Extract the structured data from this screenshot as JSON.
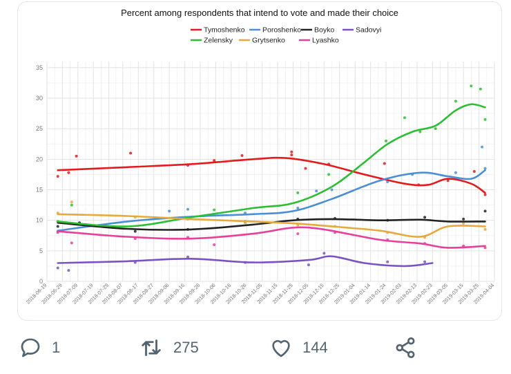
{
  "tweet": {
    "reply_count": "1",
    "retweet_count": "275",
    "like_count": "144"
  },
  "chart_data": {
    "type": "line",
    "title": "Percent among respondents that intend to vote and made their choice",
    "xlabel": "",
    "ylabel": "",
    "ylim": [
      0,
      36
    ],
    "xlim": [
      "2018-06-19",
      "2019-04-04"
    ],
    "grid": true,
    "legend_position": "top",
    "x_ticks": [
      "2018-06-19",
      "2018-06-29",
      "2018-07-09",
      "2018-07-19",
      "2018-07-29",
      "2018-08-07",
      "2018-08-17",
      "2018-08-27",
      "2018-09-06",
      "2018-09-16",
      "2018-09-26",
      "2018-10-06",
      "2018-10-16",
      "2018-10-26",
      "2018-11-05",
      "2018-11-15",
      "2018-11-25",
      "2018-12-05",
      "2018-12-15",
      "2018-12-25",
      "2019-01-04",
      "2019-01-14",
      "2019-01-24",
      "2019-02-03",
      "2019-02-13",
      "2019-02-23",
      "2019-03-05",
      "2019-03-15",
      "2019-03-25",
      "2019-04-04"
    ],
    "y_ticks": [
      0,
      5,
      10,
      15,
      20,
      25,
      30,
      35
    ],
    "series": [
      {
        "name": "Tymoshenko",
        "color": "#e41a1c",
        "x": [
          "2018-06-26",
          "2018-08-10",
          "2018-09-20",
          "2018-10-30",
          "2018-11-20",
          "2018-12-15",
          "2019-01-10",
          "2019-02-05",
          "2019-02-20",
          "2019-03-05",
          "2019-03-20",
          "2019-03-29"
        ],
        "y": [
          18.2,
          18.7,
          19.2,
          20.0,
          20.2,
          19.2,
          17.5,
          16.0,
          15.8,
          16.8,
          16.0,
          14.5
        ],
        "points": [
          [
            "2018-06-26",
            17.2
          ],
          [
            "2018-07-03",
            17.8
          ],
          [
            "2018-07-08",
            20.5
          ],
          [
            "2018-08-12",
            21.0
          ],
          [
            "2018-09-18",
            19.0
          ],
          [
            "2018-10-05",
            19.8
          ],
          [
            "2018-10-23",
            20.6
          ],
          [
            "2018-11-24",
            21.2
          ],
          [
            "2018-11-24",
            20.7
          ],
          [
            "2018-12-03",
            18.5
          ],
          [
            "2018-12-18",
            19.2
          ],
          [
            "2019-01-23",
            19.3
          ],
          [
            "2019-02-14",
            15.8
          ],
          [
            "2019-03-05",
            16.5
          ],
          [
            "2019-03-22",
            18.0
          ],
          [
            "2019-03-29",
            14.2
          ]
        ]
      },
      {
        "name": "Poroshenko",
        "color": "#4a8fd6",
        "x": [
          "2018-06-26",
          "2018-08-10",
          "2018-09-20",
          "2018-10-30",
          "2018-11-25",
          "2018-12-20",
          "2019-01-20",
          "2019-02-15",
          "2019-03-05",
          "2019-03-20",
          "2019-03-29"
        ],
        "y": [
          8.3,
          9.8,
          10.6,
          11.0,
          11.5,
          13.5,
          16.5,
          17.8,
          17.2,
          16.8,
          18.2
        ],
        "points": [
          [
            "2018-06-26",
            8.2
          ],
          [
            "2018-07-05",
            9.5
          ],
          [
            "2018-09-06",
            11.5
          ],
          [
            "2018-09-18",
            11.8
          ],
          [
            "2018-10-25",
            11.2
          ],
          [
            "2018-11-28",
            12.0
          ],
          [
            "2018-12-10",
            14.8
          ],
          [
            "2018-12-20",
            15.0
          ],
          [
            "2019-01-25",
            16.3
          ],
          [
            "2019-02-10",
            17.5
          ],
          [
            "2019-03-10",
            17.8
          ],
          [
            "2019-03-27",
            22.0
          ],
          [
            "2019-03-29",
            18.5
          ]
        ]
      },
      {
        "name": "Boyko",
        "color": "#222222",
        "x": [
          "2018-06-26",
          "2018-08-10",
          "2018-09-20",
          "2018-10-30",
          "2018-11-25",
          "2018-12-20",
          "2019-01-20",
          "2019-02-15",
          "2019-03-05",
          "2019-03-29"
        ],
        "y": [
          9.6,
          8.6,
          8.5,
          9.3,
          10.0,
          10.2,
          10.0,
          10.1,
          9.8,
          9.8
        ],
        "points": [
          [
            "2018-06-26",
            9.0
          ],
          [
            "2018-07-10",
            9.6
          ],
          [
            "2018-08-15",
            8.2
          ],
          [
            "2018-09-18",
            8.5
          ],
          [
            "2018-10-25",
            9.8
          ],
          [
            "2018-11-28",
            10.2
          ],
          [
            "2018-12-22",
            10.3
          ],
          [
            "2019-01-25",
            10.0
          ],
          [
            "2019-02-18",
            10.5
          ],
          [
            "2019-03-15",
            10.2
          ],
          [
            "2019-03-29",
            11.5
          ]
        ]
      },
      {
        "name": "Sadovyi",
        "color": "#7b52c4",
        "x": [
          "2018-06-26",
          "2018-08-10",
          "2018-09-20",
          "2018-10-30",
          "2018-12-05",
          "2018-12-20",
          "2019-01-10",
          "2019-02-05",
          "2019-02-23"
        ],
        "y": [
          3.0,
          3.3,
          3.7,
          3.1,
          3.5,
          4.1,
          3.0,
          2.5,
          3.0
        ],
        "points": [
          [
            "2018-06-26",
            2.2
          ],
          [
            "2018-07-03",
            1.8
          ],
          [
            "2018-08-15",
            3.1
          ],
          [
            "2018-09-18",
            4.0
          ],
          [
            "2018-10-25",
            3.1
          ],
          [
            "2018-12-05",
            2.7
          ],
          [
            "2018-12-15",
            4.6
          ],
          [
            "2019-01-25",
            3.2
          ],
          [
            "2019-02-18",
            3.2
          ]
        ]
      },
      {
        "name": "Zelensky",
        "color": "#2bbf33",
        "x": [
          "2018-06-26",
          "2018-08-10",
          "2018-09-20",
          "2018-10-30",
          "2018-11-25",
          "2018-12-20",
          "2019-01-10",
          "2019-01-25",
          "2019-02-10",
          "2019-02-25",
          "2019-03-10",
          "2019-03-20",
          "2019-03-29"
        ],
        "y": [
          9.8,
          9.0,
          10.5,
          12.0,
          12.8,
          15.5,
          19.5,
          22.5,
          24.5,
          25.5,
          28.0,
          29.0,
          28.5
        ],
        "points": [
          [
            "2018-06-26",
            9.8
          ],
          [
            "2018-07-05",
            12.5
          ],
          [
            "2018-10-05",
            11.7
          ],
          [
            "2018-11-28",
            14.5
          ],
          [
            "2018-12-18",
            17.5
          ],
          [
            "2019-01-24",
            23.0
          ],
          [
            "2019-02-05",
            26.8
          ],
          [
            "2019-02-15",
            24.5
          ],
          [
            "2019-02-25",
            25.0
          ],
          [
            "2019-03-10",
            29.5
          ],
          [
            "2019-03-20",
            32.0
          ],
          [
            "2019-03-26",
            31.5
          ],
          [
            "2019-03-29",
            26.5
          ]
        ]
      },
      {
        "name": "Grytsenko",
        "color": "#e6a93b",
        "x": [
          "2018-06-26",
          "2018-08-10",
          "2018-09-20",
          "2018-10-30",
          "2018-11-25",
          "2018-12-20",
          "2019-01-20",
          "2019-02-15",
          "2019-03-05",
          "2019-03-29"
        ],
        "y": [
          11.0,
          10.7,
          10.2,
          9.8,
          9.5,
          9.0,
          8.3,
          7.3,
          9.0,
          9.0
        ],
        "points": [
          [
            "2018-06-26",
            11.2
          ],
          [
            "2018-07-05",
            13.0
          ],
          [
            "2018-08-15",
            10.5
          ],
          [
            "2018-09-18",
            10.2
          ],
          [
            "2018-10-25",
            9.6
          ],
          [
            "2018-11-28",
            9.2
          ],
          [
            "2018-12-22",
            9.0
          ],
          [
            "2019-01-25",
            8.0
          ],
          [
            "2019-02-18",
            7.2
          ],
          [
            "2019-03-15",
            9.5
          ],
          [
            "2019-03-29",
            8.5
          ]
        ]
      },
      {
        "name": "Lyashko",
        "color": "#e83e9c",
        "x": [
          "2018-06-26",
          "2018-08-10",
          "2018-09-20",
          "2018-10-30",
          "2018-11-25",
          "2018-12-15",
          "2019-01-20",
          "2019-02-15",
          "2019-03-05",
          "2019-03-29"
        ],
        "y": [
          8.2,
          7.3,
          7.0,
          7.8,
          8.8,
          8.5,
          6.8,
          6.2,
          5.5,
          5.8
        ],
        "points": [
          [
            "2018-06-26",
            8.0
          ],
          [
            "2018-07-05",
            6.3
          ],
          [
            "2018-08-15",
            7.0
          ],
          [
            "2018-09-18",
            7.2
          ],
          [
            "2018-10-05",
            6.0
          ],
          [
            "2018-11-28",
            7.8
          ],
          [
            "2018-12-22",
            8.0
          ],
          [
            "2019-01-25",
            6.8
          ],
          [
            "2019-02-18",
            6.2
          ],
          [
            "2019-03-15",
            5.8
          ],
          [
            "2019-03-29",
            5.5
          ]
        ]
      }
    ]
  }
}
